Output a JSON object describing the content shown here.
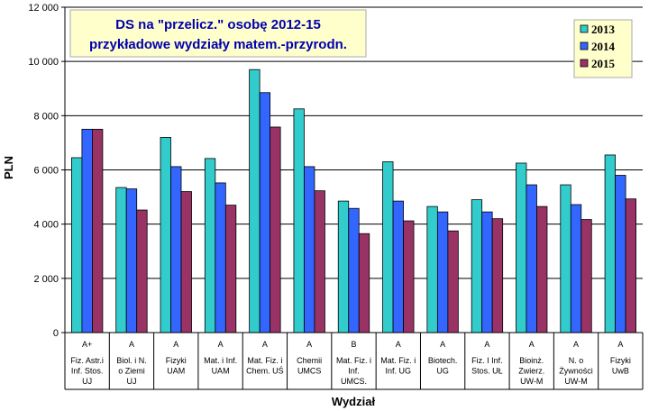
{
  "chart_data": {
    "type": "bar",
    "title_lines": [
      "DS na \"przelicz.\" osobę 2012-15",
      "przykładowe wydziały matem.-przyrodn."
    ],
    "xlabel": "Wydział",
    "ylabel": "PLN",
    "ylim": [
      0,
      12000
    ],
    "yticks": [
      "0",
      "2 000",
      "4 000",
      "6 000",
      "8 000",
      "10 000",
      "12 000"
    ],
    "grid": true,
    "legend_position": "top-right",
    "categories": [
      {
        "grade": "A+",
        "lines": [
          "Fiz. Astr.i",
          "Inf. Stos.",
          "UJ"
        ]
      },
      {
        "grade": "A",
        "lines": [
          "Biol. i N.",
          "o Ziemi",
          "UJ"
        ]
      },
      {
        "grade": "A",
        "lines": [
          "Fizyki",
          "UAM"
        ]
      },
      {
        "grade": "A",
        "lines": [
          "Mat. i Inf.",
          "UAM"
        ]
      },
      {
        "grade": "A",
        "lines": [
          "Mat. Fiz. i",
          "Chem. UŚ"
        ]
      },
      {
        "grade": "A",
        "lines": [
          "Chemii",
          "UMCS"
        ]
      },
      {
        "grade": "B",
        "lines": [
          "Mat. Fiz. i",
          "Inf.",
          "UMCS."
        ]
      },
      {
        "grade": "A",
        "lines": [
          "Mat. Fiz. i",
          "Inf. UG"
        ]
      },
      {
        "grade": "A",
        "lines": [
          "Biotech.",
          "UG"
        ]
      },
      {
        "grade": "A",
        "lines": [
          "Fiz. I Inf.",
          "Stos. UŁ"
        ]
      },
      {
        "grade": "A",
        "lines": [
          "Bioinż.",
          "Zwierz.",
          "UW-M"
        ]
      },
      {
        "grade": "A",
        "lines": [
          "N. o",
          "Żywności",
          "UW-M"
        ]
      },
      {
        "grade": "A",
        "lines": [
          "Fizyki",
          "UwB"
        ]
      }
    ],
    "series": [
      {
        "name": "2013",
        "color": "#33cccc",
        "values": [
          6450,
          5350,
          7200,
          6420,
          9700,
          8250,
          4850,
          6300,
          4650,
          4900,
          6250,
          5450,
          6550
        ]
      },
      {
        "name": "2014",
        "color": "#3366ff",
        "values": [
          7500,
          5300,
          6120,
          5520,
          8850,
          6120,
          4580,
          4850,
          4450,
          4450,
          5450,
          4720,
          5800
        ]
      },
      {
        "name": "2015",
        "color": "#993366",
        "values": [
          7500,
          4520,
          5200,
          4700,
          7580,
          5230,
          3650,
          4120,
          3750,
          4200,
          4650,
          4170,
          4930
        ]
      }
    ]
  }
}
